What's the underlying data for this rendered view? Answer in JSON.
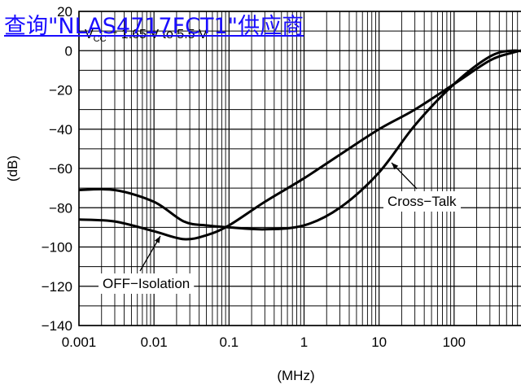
{
  "link": {
    "text": "查询\"NLAS4717FCT1\"供应商"
  },
  "chart_data": {
    "type": "line",
    "title": "",
    "xlabel": "(MHz)",
    "ylabel": "(dB)",
    "x_scale": "log",
    "xlim": [
      0.001,
      1000
    ],
    "ylim": [
      -140,
      20
    ],
    "grid": true,
    "x_ticks": [
      {
        "value": 0.001,
        "label": "0.001"
      },
      {
        "value": 0.01,
        "label": "0.01"
      },
      {
        "value": 0.1,
        "label": "0.1"
      },
      {
        "value": 1,
        "label": "1"
      },
      {
        "value": 10,
        "label": "10"
      },
      {
        "value": 100,
        "label": "100"
      }
    ],
    "y_ticks": [
      {
        "value": 20,
        "label": "20"
      },
      {
        "value": 0,
        "label": "0"
      },
      {
        "value": -20,
        "label": "−20"
      },
      {
        "value": -40,
        "label": "−40"
      },
      {
        "value": -60,
        "label": "−60"
      },
      {
        "value": -80,
        "label": "−80"
      },
      {
        "value": -100,
        "label": "−100"
      },
      {
        "value": -120,
        "label": "−120"
      },
      {
        "value": -140,
        "label": "−140"
      }
    ],
    "annotation": "V CC = 1.65 V to 5.5 V",
    "annotation_main": "V",
    "annotation_sub": "CC",
    "annotation_rest": " = 1.65 V to 5.5 V",
    "series": [
      {
        "name": "OFF−Isolation",
        "x": [
          0.001,
          0.003,
          0.01,
          0.025,
          0.05,
          0.1,
          0.3,
          1,
          3,
          10,
          30,
          100,
          300,
          600,
          1000
        ],
        "y": [
          -71,
          -71,
          -77,
          -87,
          -89,
          -90,
          -91,
          -89,
          -80,
          -62,
          -38,
          -17,
          -3,
          0,
          -1
        ]
      },
      {
        "name": "Cross−Talk",
        "x": [
          0.001,
          0.003,
          0.01,
          0.025,
          0.05,
          0.1,
          0.3,
          1,
          3,
          10,
          30,
          100,
          300,
          600,
          1000
        ],
        "y": [
          -86,
          -87,
          -92,
          -96,
          -94,
          -89,
          -77,
          -65,
          -53,
          -40,
          -30,
          -17,
          -5,
          -1,
          1
        ]
      }
    ],
    "labels": [
      {
        "text": "OFF−Isolation",
        "series": "OFF−Isolation"
      },
      {
        "text": "Cross−Talk",
        "series": "Cross−Talk"
      }
    ]
  }
}
